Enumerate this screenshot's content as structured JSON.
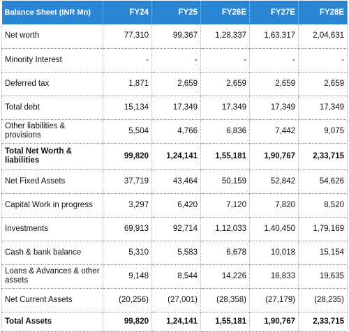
{
  "header": {
    "label": "Balance Sheet (INR Mn)",
    "columns": [
      "FY24",
      "FY25",
      "FY26E",
      "FY27E",
      "FY28E"
    ]
  },
  "rows": [
    {
      "label": "Net worth",
      "values": [
        "77,310",
        "99,367",
        "1,28,337",
        "1,63,317",
        "2,04,631"
      ]
    },
    {
      "label": "Minority Interest",
      "values": [
        "-",
        "-",
        "-",
        "-",
        "-"
      ]
    },
    {
      "label": "Deferred tax",
      "values": [
        "1,871",
        "2,659",
        "2,659",
        "2,659",
        "2,659"
      ]
    },
    {
      "label": "Total debt",
      "values": [
        "15,134",
        "17,349",
        "17,349",
        "17,349",
        "17,349"
      ]
    },
    {
      "label": "Other liabilities & provisions",
      "values": [
        "5,504",
        "4,766",
        "6,836",
        "7,442",
        "9,075"
      ]
    },
    {
      "label": "Total Net Worth & liabilities",
      "values": [
        "99,820",
        "1,24,141",
        "1,55,181",
        "1,90,767",
        "2,33,715"
      ]
    },
    {
      "label": "Net Fixed Assets",
      "values": [
        "37,719",
        "43,464",
        "50,159",
        "52,842",
        "54,626"
      ]
    },
    {
      "label": "Capital Work in progress",
      "values": [
        "3,297",
        "6,420",
        "7,120",
        "7,820",
        "8,520"
      ]
    },
    {
      "label": "Investments",
      "values": [
        "69,913",
        "92,714",
        "1,12,033",
        "1,40,450",
        "1,79,169"
      ]
    },
    {
      "label": "Cash & bank balance",
      "values": [
        "5,310",
        "5,583",
        "6,678",
        "10,018",
        "15,154"
      ]
    },
    {
      "label": "Loans & Advances & other assets",
      "values": [
        "9,148",
        "8,544",
        "14,226",
        "16,833",
        "19,635"
      ]
    },
    {
      "label": "Net Current Assets",
      "values": [
        "(20,256)",
        "(27,001)",
        "(28,358)",
        "(27,179)",
        "(28,235)"
      ]
    },
    {
      "label": "Total Assets",
      "values": [
        "99,820",
        "1,24,141",
        "1,55,181",
        "1,90,767",
        "2,33,715"
      ]
    }
  ]
}
